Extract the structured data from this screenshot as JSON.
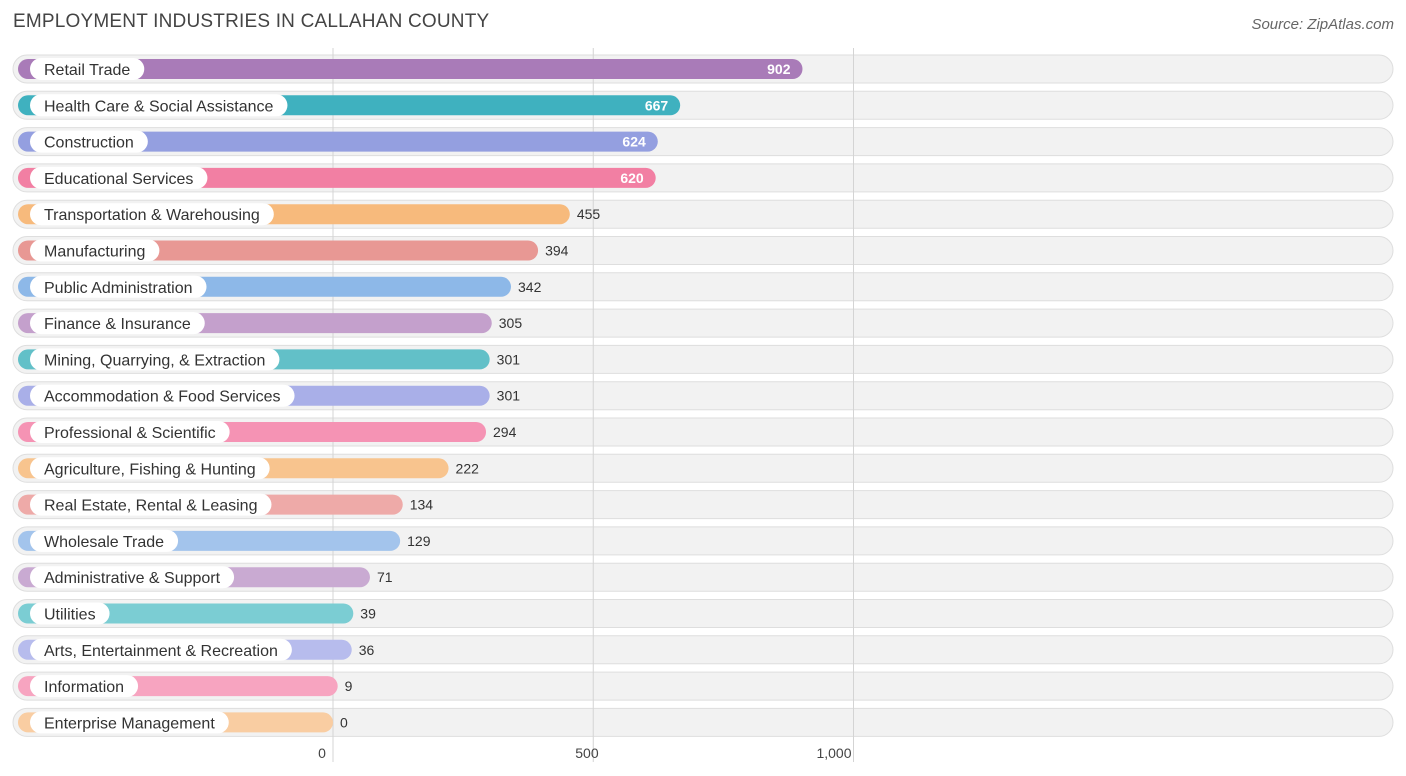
{
  "title": "EMPLOYMENT INDUSTRIES IN CALLAHAN COUNTY",
  "source": "Source: ZipAtlas.com",
  "chart_data": {
    "type": "bar",
    "orientation": "horizontal",
    "title": "EMPLOYMENT INDUSTRIES IN CALLAHAN COUNTY",
    "categories": [
      "Retail Trade",
      "Health Care & Social Assistance",
      "Construction",
      "Educational Services",
      "Transportation & Warehousing",
      "Manufacturing",
      "Public Administration",
      "Finance & Insurance",
      "Mining, Quarrying, & Extraction",
      "Accommodation & Food Services",
      "Professional & Scientific",
      "Agriculture, Fishing & Hunting",
      "Real Estate, Rental & Leasing",
      "Wholesale Trade",
      "Administrative & Support",
      "Utilities",
      "Arts, Entertainment & Recreation",
      "Information",
      "Enterprise Management"
    ],
    "values": [
      902,
      667,
      624,
      620,
      455,
      394,
      342,
      305,
      301,
      301,
      294,
      222,
      134,
      129,
      71,
      39,
      36,
      9,
      0
    ],
    "value_labels": [
      "902",
      "667",
      "624",
      "620",
      "455",
      "394",
      "342",
      "305",
      "301",
      "301",
      "294",
      "222",
      "134",
      "129",
      "71",
      "39",
      "36",
      "9",
      "0"
    ],
    "colors": [
      "#a97bb8",
      "#3fb1bf",
      "#949fe0",
      "#f27fa3",
      "#f7ba7c",
      "#e89894",
      "#8db8e8",
      "#c4a0cc",
      "#62c0c8",
      "#a9afe8",
      "#f593b4",
      "#f8c48e",
      "#eeaaa8",
      "#a3c4ec",
      "#c9aad2",
      "#7bcdd3",
      "#b7bced",
      "#f7a4c0",
      "#f9cda2"
    ],
    "xlim": [
      0,
      1000
    ],
    "x_ticks": [
      0,
      500,
      1000
    ],
    "x_tick_labels": [
      "0",
      "500",
      "1,000"
    ],
    "grid": true
  }
}
